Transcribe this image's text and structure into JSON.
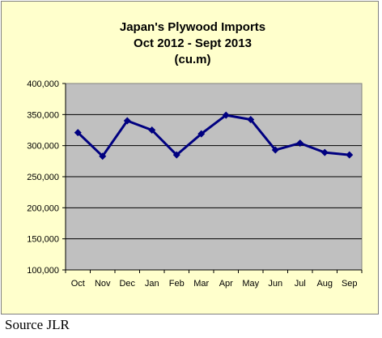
{
  "chart_data": {
    "type": "line",
    "title": [
      "Japan's Plywood Imports",
      "Oct 2012  - Sept 2013",
      "(cu.m)"
    ],
    "xlabel": "",
    "ylabel": "",
    "categories": [
      "Oct",
      "Nov",
      "Dec",
      "Jan",
      "Feb",
      "Mar",
      "Apr",
      "May",
      "Jun",
      "Jul",
      "Aug",
      "Sep"
    ],
    "values": [
      321000,
      283000,
      340000,
      325000,
      285000,
      319000,
      349000,
      342000,
      293000,
      304000,
      289000,
      285000
    ],
    "ylim": [
      100000,
      400000
    ],
    "yticks": [
      "100,000",
      "150,000",
      "200,000",
      "250,000",
      "300,000",
      "350,000",
      "400,000"
    ],
    "grid": "horizontal",
    "legend": "none",
    "colors": {
      "frame_background": "#ffffcc",
      "plot_background": "#c0c0c0",
      "line": "#000080",
      "gridline": "#000000"
    }
  },
  "source_note": "Source JLR"
}
